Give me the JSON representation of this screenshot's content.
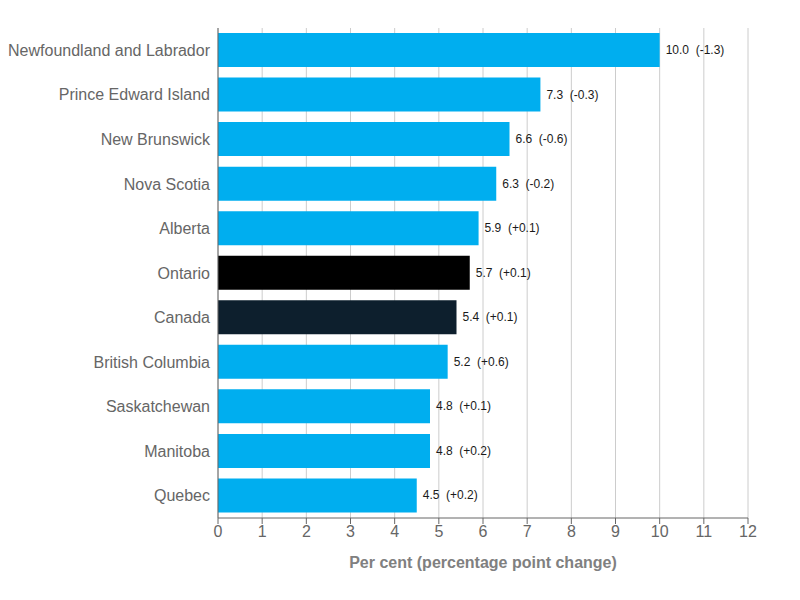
{
  "chart_data": {
    "type": "bar",
    "orientation": "horizontal",
    "categories": [
      "Newfoundland and Labrador",
      "Prince Edward Island",
      "New Brunswick",
      "Nova Scotia",
      "Alberta",
      "Ontario",
      "Canada",
      "British Columbia",
      "Saskatchewan",
      "Manitoba",
      "Quebec"
    ],
    "values": [
      10.0,
      7.3,
      6.6,
      6.3,
      5.9,
      5.7,
      5.4,
      5.2,
      4.8,
      4.8,
      4.5
    ],
    "value_labels": [
      "10.0  (-1.3)",
      "7.3  (-0.3)",
      "6.6  (-0.6)",
      "6.3  (-0.2)",
      "5.9  (+0.1)",
      "5.7  (+0.1)",
      "5.4  (+0.1)",
      "5.2  (+0.6)",
      "4.8  (+0.1)",
      "4.8  (+0.2)",
      "4.5  (+0.2)"
    ],
    "colors": [
      "#00AEEF",
      "#00AEEF",
      "#00AEEF",
      "#00AEEF",
      "#00AEEF",
      "#000000",
      "#0D1F2D",
      "#00AEEF",
      "#00AEEF",
      "#00AEEF",
      "#00AEEF"
    ],
    "xlabel": "Per cent (percentage point change)",
    "xlim": [
      0,
      12
    ],
    "xticks": [
      0,
      1,
      2,
      3,
      4,
      5,
      6,
      7,
      8,
      9,
      10,
      11,
      12
    ],
    "grid": true,
    "data_labels": true
  }
}
